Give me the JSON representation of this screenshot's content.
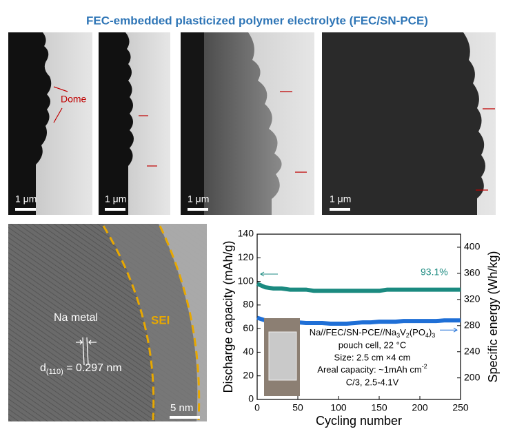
{
  "figure": {
    "title": "FEC-embedded plasticized polymer electrolyte (FEC/SN-PCE)",
    "tem": {
      "scale_bars": [
        "1 μm",
        "1 μm",
        "1 μm",
        "1 μm"
      ],
      "dome": "Dome"
    },
    "hrtem": {
      "metal": "Na metal",
      "spacing": [
        "d",
        "(110)",
        " = 0.297 nm"
      ],
      "sei": "SEI",
      "scale_bar": "5 nm"
    }
  },
  "chart_data": {
    "type": "line",
    "x": [
      0,
      10,
      20,
      30,
      40,
      50,
      60,
      70,
      80,
      90,
      100,
      110,
      120,
      130,
      140,
      150,
      160,
      170,
      180,
      190,
      200,
      210,
      220,
      230,
      240,
      250
    ],
    "series": [
      {
        "name": "Discharge capacity",
        "color": "#1b8a80",
        "values": [
          98,
          95,
          94,
          94,
          93,
          93,
          93,
          92,
          92,
          92,
          92,
          92,
          92,
          92,
          92,
          92,
          93,
          93,
          93,
          93,
          93,
          93,
          93,
          93,
          93,
          93
        ]
      },
      {
        "name": "Specific energy",
        "color": "#1f6fd6",
        "axis": "y2",
        "values": [
          292,
          288,
          287,
          286,
          285,
          285,
          284,
          284,
          284,
          283,
          283,
          283,
          284,
          285,
          285,
          286,
          286,
          286,
          287,
          287,
          287,
          287,
          287,
          288,
          288,
          288
        ]
      }
    ],
    "xlabel": "Cycling number",
    "ylabel": "Discharge capacity (mAh/g)",
    "y2label": "Specific energy (Wh/kg)",
    "xlim": [
      0,
      250
    ],
    "xticks": [
      0,
      50,
      100,
      150,
      200,
      250
    ],
    "ylim": [
      0,
      140
    ],
    "yticks": [
      0,
      20,
      40,
      60,
      80,
      100,
      120,
      140
    ],
    "y2lim": [
      167,
      420
    ],
    "y2ticks": [
      200,
      240,
      280,
      320,
      360,
      400
    ],
    "annotation": "93.1%",
    "inset": {
      "line1": [
        "Na//FEC/SN-PCE//Na",
        "3",
        "V",
        "2",
        "(PO",
        "4",
        ")",
        "3"
      ],
      "line2": "pouch cell, 22 °C",
      "line3": "Size:  2.5 cm ×4 cm",
      "line4": [
        "Areal capacity: ~1mAh cm",
        "-2"
      ],
      "line5": "C/3, 2.5-4.1V"
    }
  }
}
